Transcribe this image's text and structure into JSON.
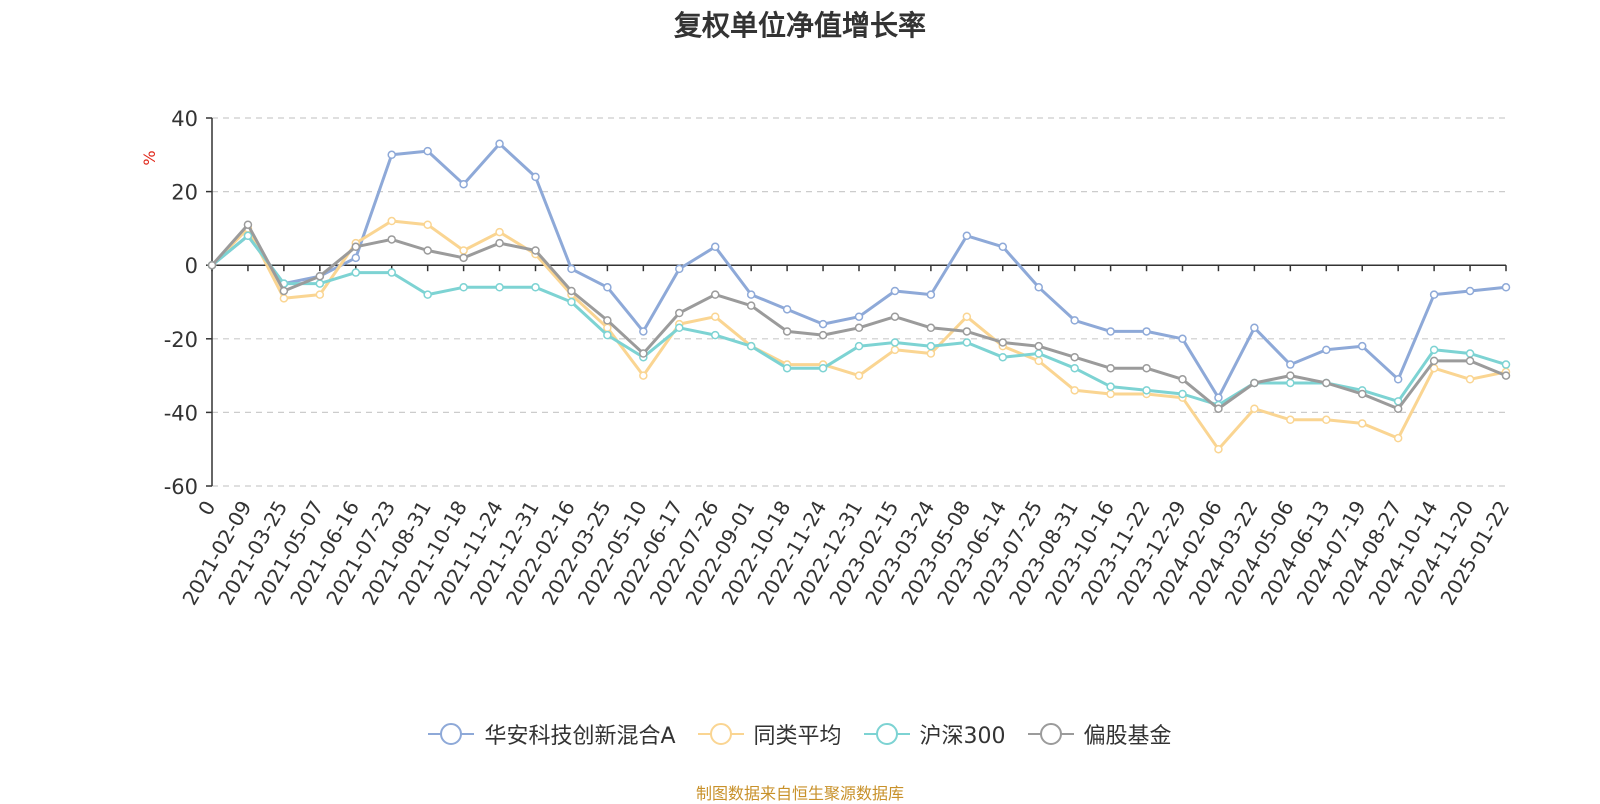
{
  "chart_data": {
    "type": "line",
    "title": "复权单位净值增长率",
    "ylabel": "%",
    "xlabel": "",
    "ylim": [
      -60,
      40
    ],
    "yticks": [
      40,
      20,
      0,
      -20,
      -40,
      -60
    ],
    "categories": [
      "0",
      "2021-02-09",
      "2021-03-25",
      "2021-05-07",
      "2021-06-16",
      "2021-07-23",
      "2021-08-31",
      "2021-10-18",
      "2021-11-24",
      "2021-12-31",
      "2022-02-16",
      "2022-03-25",
      "2022-05-10",
      "2022-06-17",
      "2022-07-26",
      "2022-09-01",
      "2022-10-18",
      "2022-11-24",
      "2022-12-31",
      "2023-02-15",
      "2023-03-24",
      "2023-05-08",
      "2023-06-14",
      "2023-07-25",
      "2023-08-31",
      "2023-10-16",
      "2023-11-22",
      "2023-12-29",
      "2024-02-06",
      "2024-03-22",
      "2024-05-06",
      "2024-06-13",
      "2024-07-19",
      "2024-08-27",
      "2024-10-14",
      "2024-11-20",
      "2025-01-22"
    ],
    "grid": true,
    "legend_position": "bottom",
    "source": "制图数据来自恒生聚源数据库",
    "series": [
      {
        "name": "华安科技创新混合A",
        "color": "#8ea9d8",
        "values": [
          0,
          8,
          -5,
          -3,
          2,
          30,
          31,
          22,
          33,
          24,
          -1,
          -6,
          -18,
          -1,
          5,
          -8,
          -12,
          -16,
          -14,
          -7,
          -8,
          8,
          5,
          -6,
          -15,
          -18,
          -18,
          -20,
          -36,
          -17,
          -27,
          -23,
          -22,
          -31,
          -8,
          -7,
          -6
        ]
      },
      {
        "name": "同类平均",
        "color": "#fad592",
        "values": [
          0,
          10,
          -9,
          -8,
          6,
          12,
          11,
          4,
          9,
          3,
          -8,
          -17,
          -30,
          -16,
          -14,
          -22,
          -27,
          -27,
          -30,
          -23,
          -24,
          -14,
          -22,
          -26,
          -34,
          -35,
          -35,
          -36,
          -50,
          -39,
          -42,
          -42,
          -43,
          -47,
          -28,
          -31,
          -29
        ]
      },
      {
        "name": "沪深300",
        "color": "#7dd3d3",
        "values": [
          0,
          8,
          -5,
          -5,
          -2,
          -2,
          -8,
          -6,
          -6,
          -6,
          -10,
          -19,
          -25,
          -17,
          -19,
          -22,
          -28,
          -28,
          -22,
          -21,
          -22,
          -21,
          -25,
          -24,
          -28,
          -33,
          -34,
          -35,
          -38,
          -32,
          -32,
          -32,
          -34,
          -37,
          -23,
          -24,
          -27
        ]
      },
      {
        "name": "偏股基金",
        "color": "#9b9b9b",
        "values": [
          0,
          11,
          -7,
          -3,
          5,
          7,
          4,
          2,
          6,
          4,
          -7,
          -15,
          -24,
          -13,
          -8,
          -11,
          -18,
          -19,
          -17,
          -14,
          -17,
          -18,
          -21,
          -22,
          -25,
          -28,
          -28,
          -31,
          -39,
          -32,
          -30,
          -32,
          -35,
          -39,
          -26,
          -26,
          -30
        ]
      }
    ]
  }
}
